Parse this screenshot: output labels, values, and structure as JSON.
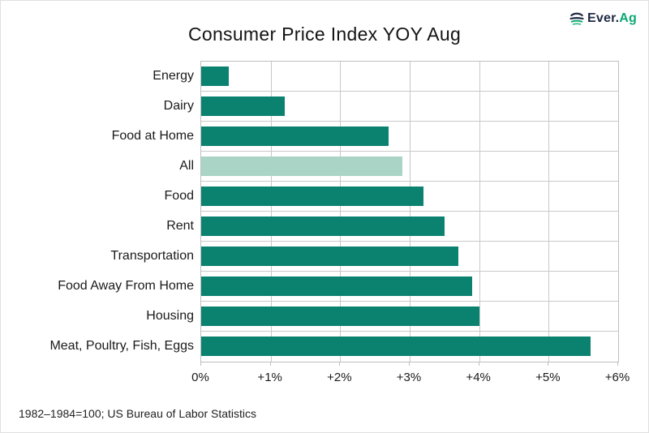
{
  "header": {
    "title": "Consumer Price Index YOY Aug",
    "logo": {
      "brand_primary": "Ever.",
      "brand_accent": "Ag",
      "navy": "#1F2A44",
      "green": "#0FA874"
    }
  },
  "chart_data": {
    "type": "bar",
    "orientation": "horizontal",
    "title": "Consumer Price Index YOY Aug",
    "categories": [
      "Energy",
      "Dairy",
      "Food at Home",
      "All",
      "Food",
      "Rent",
      "Transportation",
      "Food Away From Home",
      "Housing",
      "Meat, Poultry, Fish, Eggs"
    ],
    "values": [
      0.4,
      1.2,
      2.7,
      2.9,
      3.2,
      3.5,
      3.7,
      3.9,
      4.0,
      5.6
    ],
    "unit": "percent YOY",
    "xlim": [
      0,
      6
    ],
    "x_ticks": [
      "0%",
      "+1%",
      "+2%",
      "+3%",
      "+4%",
      "+5%",
      "+6%"
    ],
    "grid": true,
    "legend": null,
    "bar_color": "#0B8270",
    "highlight_color": "#A9D4C6",
    "highlight_category": "All"
  },
  "footnote": "1982–1984=100; US Bureau of Labor Statistics"
}
